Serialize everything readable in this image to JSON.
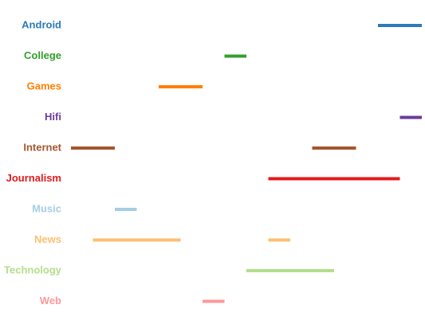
{
  "chart_data": {
    "type": "timeline",
    "categories": [
      "Android",
      "College",
      "Games",
      "Hifi",
      "Internet",
      "Journalism",
      "Music",
      "News",
      "Technology",
      "Web"
    ],
    "colors": [
      "#2b7bb9",
      "#33a02c",
      "#ff7f00",
      "#6a3d9a",
      "#a6562f",
      "#e31a1c",
      "#a6cee3",
      "#fdbf6f",
      "#b2df8a",
      "#fb9a99"
    ],
    "ranges": [
      [
        [
          14,
          16
        ]
      ],
      [
        [
          7,
          8
        ]
      ],
      [
        [
          4,
          6
        ]
      ],
      [
        [
          15,
          16
        ]
      ],
      [
        [
          0,
          2
        ],
        [
          11,
          13
        ]
      ],
      [
        [
          9,
          15
        ]
      ],
      [
        [
          2,
          3
        ]
      ],
      [
        [
          1,
          5
        ],
        [
          9,
          10
        ]
      ],
      [
        [
          8,
          12
        ]
      ],
      [
        [
          6,
          7
        ]
      ]
    ],
    "xlim": [
      0,
      16
    ]
  }
}
